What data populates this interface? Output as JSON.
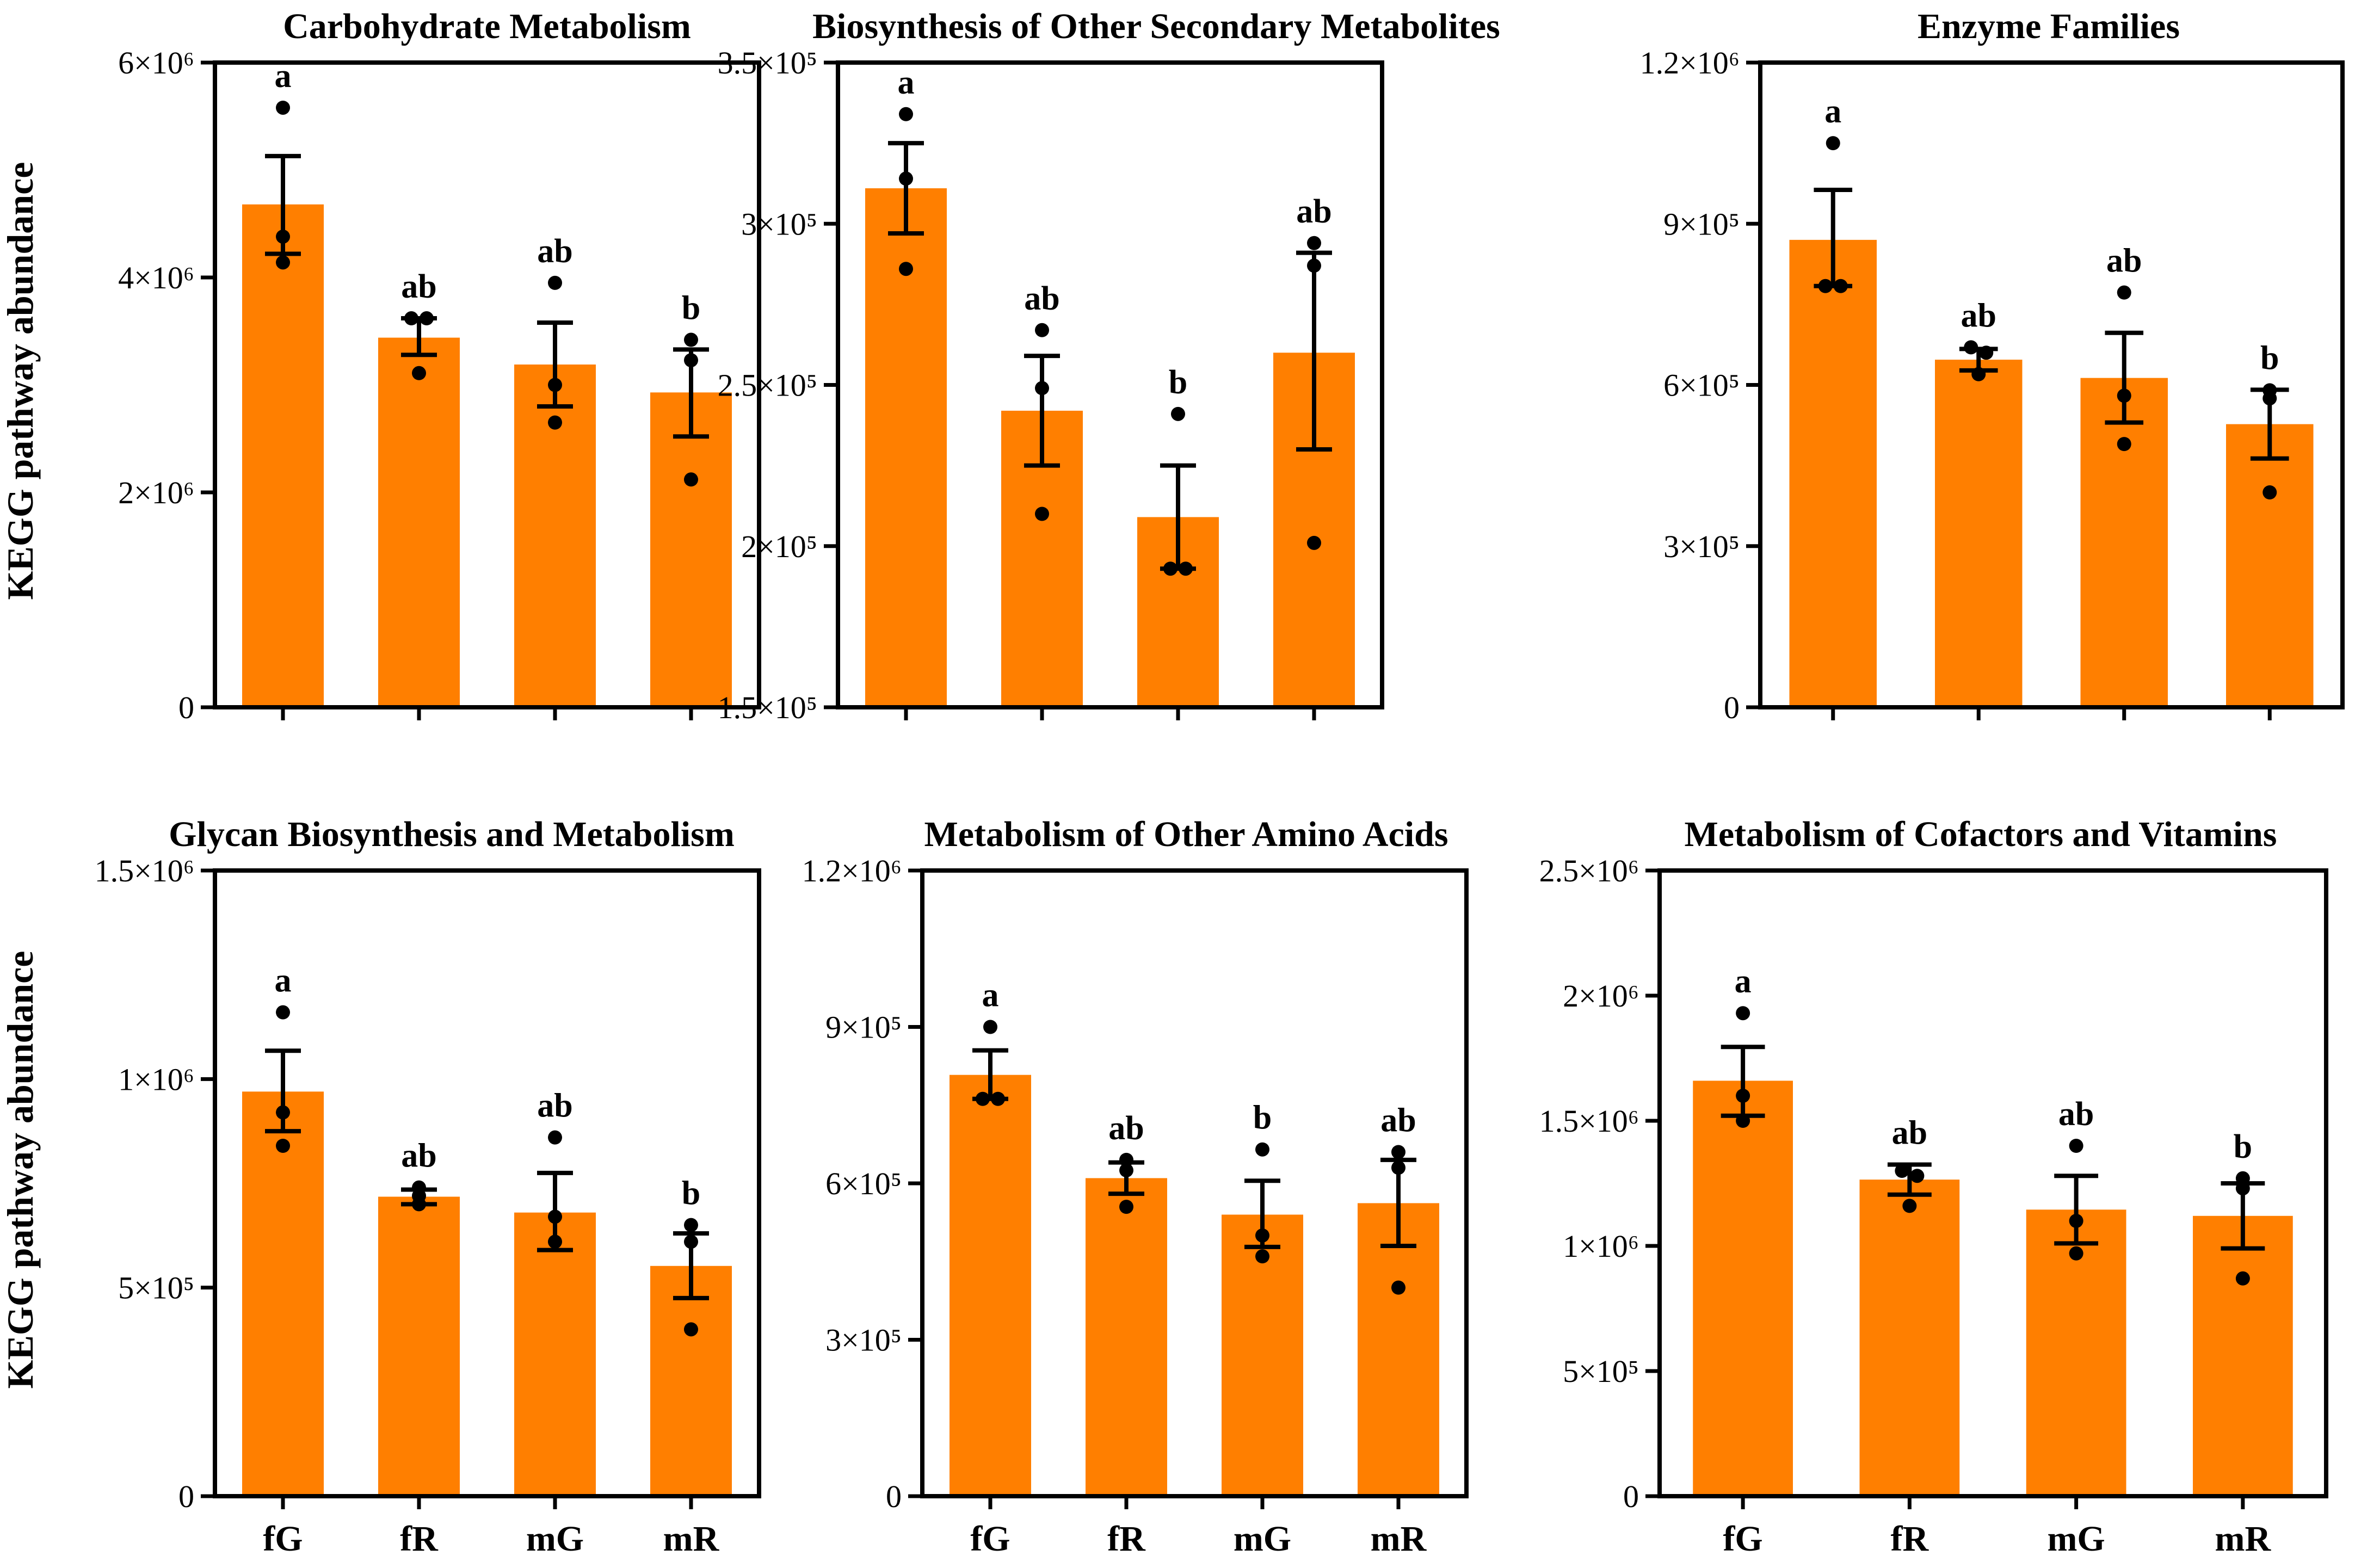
{
  "figure": {
    "ylabel": "KEGG pathway abundance"
  },
  "colors": {
    "bar": "#FF7F00",
    "axis": "#000000",
    "point": "#000000"
  },
  "chart_data": [
    {
      "type": "bar",
      "title": "Carbohydrate Metabolism",
      "categories": [
        "fG",
        "fR",
        "mG",
        "mR"
      ],
      "values": [
        4680000,
        3440000,
        3190000,
        2930000
      ],
      "sem_low": [
        4220000,
        3280000,
        2800000,
        2520000
      ],
      "sem_high": [
        5130000,
        3620000,
        3580000,
        3330000
      ],
      "points": [
        [
          5580000,
          4380000,
          4140000
        ],
        [
          3620000,
          3620000,
          3110000
        ],
        [
          3950000,
          3000000,
          2650000
        ],
        [
          3420000,
          3230000,
          2120000
        ]
      ],
      "significance": [
        "a",
        "ab",
        "ab",
        "b"
      ],
      "ylim": [
        0,
        6000000
      ],
      "yticks": [
        0,
        2000000,
        4000000,
        6000000
      ],
      "ytick_labels": [
        "0",
        "2×10⁶",
        "4×10⁶",
        "6×10⁶"
      ],
      "xlabel": "",
      "ylabel": "KEGG pathway abundance"
    },
    {
      "type": "bar",
      "title": "Biosynthesis of Other Secondary Metabolites",
      "categories": [
        "fG",
        "fR",
        "mG",
        "mR"
      ],
      "values": [
        311000,
        242000,
        209000,
        260000
      ],
      "sem_low": [
        297000,
        225000,
        193000,
        230000
      ],
      "sem_high": [
        325000,
        259000,
        225000,
        291000
      ],
      "points": [
        [
          334000,
          314000,
          286000
        ],
        [
          267000,
          249000,
          210000
        ],
        [
          241000,
          193000,
          193000
        ],
        [
          294000,
          287000,
          201000
        ]
      ],
      "significance": [
        "a",
        "ab",
        "b",
        "ab"
      ],
      "ylim": [
        150000,
        350000
      ],
      "yticks": [
        150000,
        200000,
        250000,
        300000,
        350000
      ],
      "ytick_labels": [
        "1.5×10⁵",
        "2×10⁵",
        "2.5×10⁵",
        "3×10⁵",
        "3.5×10⁵"
      ],
      "xlabel": "",
      "ylabel": ""
    },
    {
      "type": "bar",
      "title": "Enzyme Families",
      "categories": [
        "fG",
        "fR",
        "mG",
        "mR"
      ],
      "values": [
        870000,
        647000,
        613000,
        527000
      ],
      "sem_low": [
        784000,
        627000,
        530000,
        463000
      ],
      "sem_high": [
        963000,
        667000,
        697000,
        591000
      ],
      "points": [
        [
          1050000,
          784000,
          784000
        ],
        [
          670000,
          660000,
          620000
        ],
        [
          772000,
          580000,
          490000
        ],
        [
          590000,
          575000,
          400000
        ]
      ],
      "significance": [
        "a",
        "ab",
        "ab",
        "b"
      ],
      "ylim": [
        0,
        1200000
      ],
      "yticks": [
        0,
        300000,
        600000,
        900000,
        1200000
      ],
      "ytick_labels": [
        "0",
        "3×10⁵",
        "6×10⁵",
        "9×10⁵",
        "1.2×10⁶"
      ],
      "xlabel": "",
      "ylabel": ""
    },
    {
      "type": "bar",
      "title": "Glycan Biosynthesis and Metabolism",
      "categories": [
        "fG",
        "fR",
        "mG",
        "mR"
      ],
      "values": [
        970000,
        718000,
        680000,
        552000
      ],
      "sem_low": [
        875000,
        700000,
        590000,
        475000
      ],
      "sem_high": [
        1068000,
        735000,
        775000,
        630000
      ],
      "points": [
        [
          1160000,
          920000,
          840000
        ],
        [
          740000,
          720000,
          700000
        ],
        [
          860000,
          670000,
          610000
        ],
        [
          650000,
          610000,
          400000
        ]
      ],
      "significance": [
        "a",
        "ab",
        "ab",
        "b"
      ],
      "ylim": [
        0,
        1500000
      ],
      "yticks": [
        0,
        500000,
        1000000,
        1500000
      ],
      "ytick_labels": [
        "0",
        "5×10⁵",
        "1×10⁶",
        "1.5×10⁶"
      ],
      "xlabel": "",
      "ylabel": "KEGG pathway abundance"
    },
    {
      "type": "bar",
      "title": "Metabolism of Other Amino Acids",
      "categories": [
        "fG",
        "fR",
        "mG",
        "mR"
      ],
      "values": [
        808000,
        610000,
        540000,
        562000
      ],
      "sem_low": [
        762000,
        580000,
        478000,
        480000
      ],
      "sem_high": [
        855000,
        640000,
        605000,
        645000
      ],
      "points": [
        [
          900000,
          762000,
          762000
        ],
        [
          645000,
          625000,
          555000
        ],
        [
          665000,
          500000,
          460000
        ],
        [
          660000,
          630000,
          400000
        ]
      ],
      "significance": [
        "a",
        "ab",
        "b",
        "ab"
      ],
      "ylim": [
        0,
        1200000
      ],
      "yticks": [
        0,
        300000,
        600000,
        900000,
        1200000
      ],
      "ytick_labels": [
        "0",
        "3×10⁵",
        "6×10⁵",
        "9×10⁵",
        "1.2×10⁶"
      ],
      "xlabel": "",
      "ylabel": ""
    },
    {
      "type": "bar",
      "title": "Metabolism of Cofactors and Vitamins",
      "categories": [
        "fG",
        "fR",
        "mG",
        "mR"
      ],
      "values": [
        1660000,
        1265000,
        1145000,
        1120000
      ],
      "sem_low": [
        1520000,
        1205000,
        1010000,
        990000
      ],
      "sem_high": [
        1795000,
        1325000,
        1280000,
        1250000
      ],
      "points": [
        [
          1930000,
          1600000,
          1500000
        ],
        [
          1300000,
          1280000,
          1160000
        ],
        [
          1400000,
          1100000,
          970000
        ],
        [
          1270000,
          1230000,
          870000
        ]
      ],
      "significance": [
        "a",
        "ab",
        "ab",
        "b"
      ],
      "ylim": [
        0,
        2500000
      ],
      "yticks": [
        0,
        500000,
        1000000,
        1500000,
        2000000,
        2500000
      ],
      "ytick_labels": [
        "0",
        "5×10⁵",
        "1×10⁶",
        "1.5×10⁶",
        "2×10⁶",
        "2.5×10⁶"
      ],
      "xlabel": "",
      "ylabel": ""
    }
  ]
}
